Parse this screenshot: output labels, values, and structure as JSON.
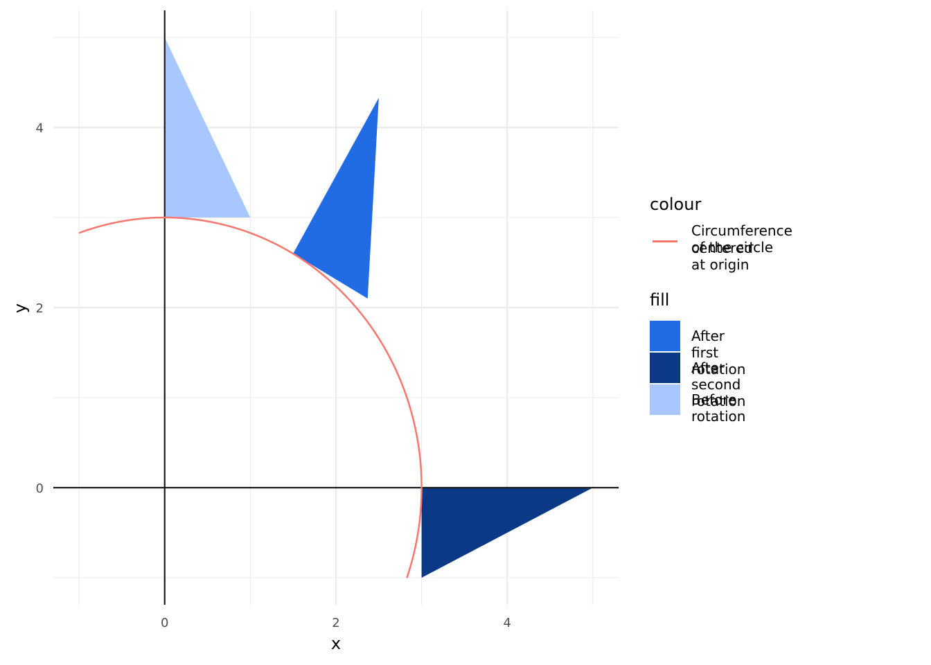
{
  "chart_data": {
    "type": "area",
    "xlabel": "x",
    "ylabel": "y",
    "xlim": [
      -1.3,
      5.3
    ],
    "ylim": [
      -1.3,
      5.3
    ],
    "x_ticks": [
      0,
      2,
      4
    ],
    "y_ticks": [
      0,
      2,
      4
    ],
    "grid": true,
    "reference_lines": {
      "x": 0,
      "y": 0,
      "color": "#1a1a1a"
    },
    "legend_position": "right",
    "fill_series": [
      {
        "name": "After first rotation",
        "color": "#216ce4",
        "polygon": [
          [
            1.5,
            2.6
          ],
          [
            2.5,
            4.33
          ],
          [
            2.37,
            2.1
          ]
        ]
      },
      {
        "name": "After second rotation",
        "color": "#0b3985",
        "polygon": [
          [
            3.0,
            0.0
          ],
          [
            5.0,
            0.0
          ],
          [
            3.0,
            -1.0
          ]
        ]
      },
      {
        "name": "Before rotation",
        "color": "#a7c7fe",
        "polygon": [
          [
            0.0,
            3.0
          ],
          [
            0.0,
            5.0
          ],
          [
            1.0,
            3.0
          ]
        ]
      }
    ],
    "colour_series": [
      {
        "name": "Circumference of the circle centered at origin",
        "color": "#f8766d",
        "radius": 3,
        "start_angle_deg": 109.5,
        "end_angle_deg": -19.5
      }
    ],
    "legend": {
      "colour_title": "colour",
      "colour_label_lines": [
        "Circumference of the circle",
        "centered at origin"
      ],
      "fill_title": "fill"
    }
  }
}
